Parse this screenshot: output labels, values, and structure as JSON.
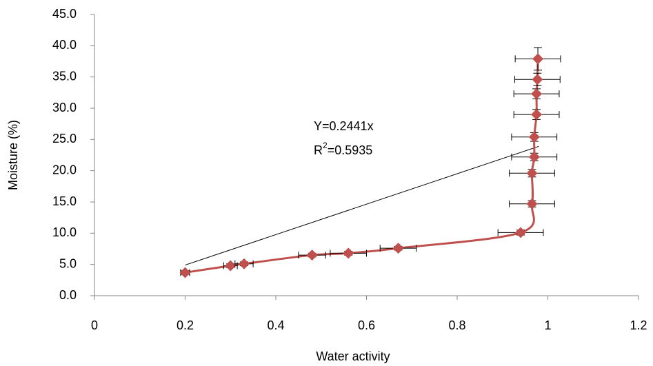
{
  "chart_data": {
    "type": "scatter",
    "x_label": "Water activity",
    "y_label": "Moisture (%)",
    "annotation": {
      "equation": "Y=0.2441x",
      "r_label": "R",
      "r_sup": "2",
      "r_value": "=0.5935"
    },
    "series": [
      {
        "name": "Moisture",
        "color": "#c0504d",
        "x": [
          0.2,
          0.3,
          0.33,
          0.48,
          0.56,
          0.67,
          0.94,
          0.965,
          0.965,
          0.97,
          0.97,
          0.975,
          0.975,
          0.977,
          0.978
        ],
        "values": [
          3.7,
          4.8,
          5.1,
          6.5,
          6.8,
          7.6,
          10.1,
          14.7,
          19.6,
          22.2,
          25.4,
          29.0,
          32.3,
          34.6,
          37.9
        ],
        "x_errors": [
          0.01,
          0.015,
          0.02,
          0.03,
          0.04,
          0.04,
          0.05,
          0.05,
          0.05,
          0.05,
          0.05,
          0.05,
          0.05,
          0.05,
          0.05
        ],
        "y_errors": [
          0.3,
          0.3,
          0.3,
          0.3,
          0.3,
          0.3,
          0.4,
          0.5,
          0.6,
          0.6,
          0.7,
          0.8,
          0.8,
          1.0,
          1.8
        ]
      }
    ],
    "trendline": {
      "color": "#000000",
      "x": [
        0.2,
        0.98
      ],
      "y": [
        4.9,
        23.9
      ]
    },
    "xlim": [
      0,
      1.2
    ],
    "xticks": [
      0,
      0.2,
      0.4,
      0.6,
      0.8,
      1,
      1.2
    ],
    "ylim": [
      0,
      45
    ],
    "yticks": [
      {
        "value": 0,
        "label": "0.0"
      },
      {
        "value": 5,
        "label": "5.0"
      },
      {
        "value": 10,
        "label": "10.0"
      },
      {
        "value": 15,
        "label": "15.0"
      },
      {
        "value": 20,
        "label": "20.0"
      },
      {
        "value": 25,
        "label": "25.0"
      },
      {
        "value": 30,
        "label": "30.0"
      },
      {
        "value": 35,
        "label": "35.0"
      },
      {
        "value": 40,
        "label": "40.0"
      },
      {
        "value": 45,
        "label": "45.0"
      }
    ],
    "grid": false
  }
}
